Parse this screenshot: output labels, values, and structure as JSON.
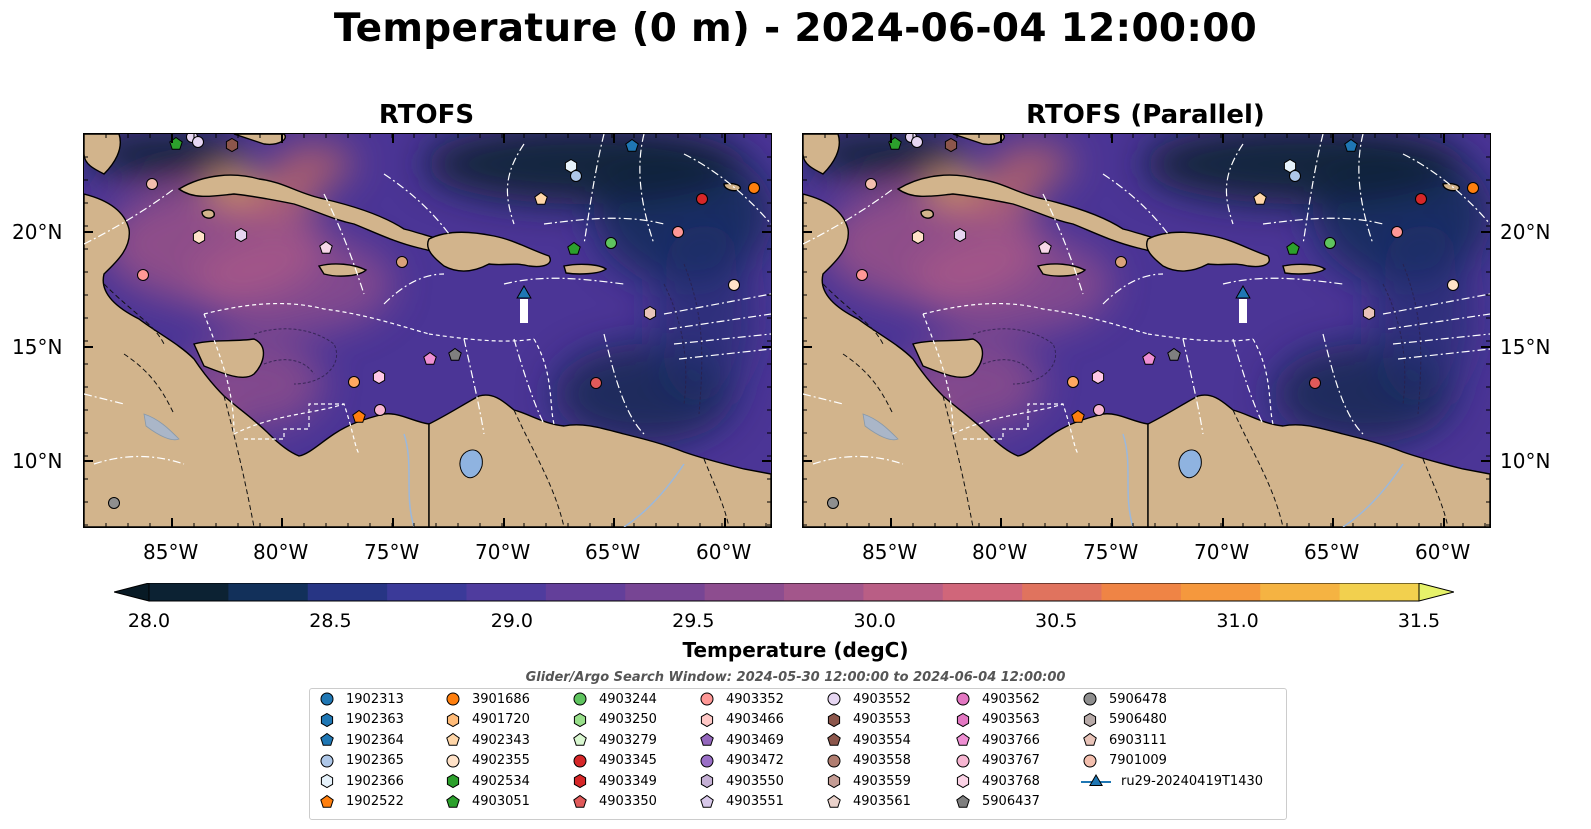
{
  "title": "Temperature (0 m) - 2024-06-04 12:00:00",
  "panels": [
    {
      "title": "RTOFS"
    },
    {
      "title": "RTOFS (Parallel)"
    }
  ],
  "axes": {
    "lat_labels": [
      "20°N",
      "15°N",
      "10°N"
    ],
    "lon_labels": [
      "85°W",
      "80°W",
      "75°W",
      "70°W",
      "65°W",
      "60°W"
    ]
  },
  "colorbar": {
    "title": "Temperature (degC)",
    "min": 28.0,
    "max": 31.5,
    "ticks": [
      "28.0",
      "28.5",
      "29.0",
      "29.5",
      "30.0",
      "30.5",
      "31.0",
      "31.5"
    ],
    "colors": [
      "#0c2233",
      "#12305a",
      "#273584",
      "#3b3a99",
      "#4f3c9e",
      "#633f9a",
      "#774594",
      "#8d4d8f",
      "#a3568b",
      "#b95e85",
      "#d0667a",
      "#e0735e",
      "#ef8445",
      "#f5983d",
      "#f5b342",
      "#f2d04e"
    ],
    "under_color": "#081a25",
    "over_color": "#e6f26a"
  },
  "search_window": "Glider/Argo Search Window: 2024-05-30 12:00:00 to 2024-06-04 12:00:00",
  "legend": [
    {
      "label": "1902313",
      "marker": "circle",
      "color": "#1f77b4"
    },
    {
      "label": "1902363",
      "marker": "hexagon",
      "color": "#1f77b4"
    },
    {
      "label": "1902364",
      "marker": "pentagon",
      "color": "#1f77b4"
    },
    {
      "label": "1902365",
      "marker": "circle",
      "color": "#aec7e8"
    },
    {
      "label": "1902366",
      "marker": "hexagon",
      "color": "#e6f2fb"
    },
    {
      "label": "1902522",
      "marker": "pentagon",
      "color": "#ff7f0e"
    },
    {
      "label": "3901686",
      "marker": "circle",
      "color": "#ff7f0e"
    },
    {
      "label": "4901720",
      "marker": "hexagon",
      "color": "#ffbb78"
    },
    {
      "label": "4902343",
      "marker": "pentagon",
      "color": "#ffd6a8"
    },
    {
      "label": "4902355",
      "marker": "circle",
      "color": "#ffe2c8"
    },
    {
      "label": "4902534",
      "marker": "hexagon",
      "color": "#2ca02c"
    },
    {
      "label": "4903051",
      "marker": "pentagon",
      "color": "#2ca02c"
    },
    {
      "label": "4903244",
      "marker": "circle",
      "color": "#5fc45f"
    },
    {
      "label": "4903250",
      "marker": "hexagon",
      "color": "#98df8a"
    },
    {
      "label": "4903279",
      "marker": "pentagon",
      "color": "#d9f7d0"
    },
    {
      "label": "4903345",
      "marker": "circle",
      "color": "#d62728"
    },
    {
      "label": "4903349",
      "marker": "hexagon",
      "color": "#d62728"
    },
    {
      "label": "4903350",
      "marker": "pentagon",
      "color": "#e05a5a"
    },
    {
      "label": "4903352",
      "marker": "circle",
      "color": "#ff9896"
    },
    {
      "label": "4903466",
      "marker": "hexagon",
      "color": "#ffc8c6"
    },
    {
      "label": "4903469",
      "marker": "pentagon",
      "color": "#9467bd"
    },
    {
      "label": "4903472",
      "marker": "circle",
      "color": "#9a6fc7"
    },
    {
      "label": "4903550",
      "marker": "hexagon",
      "color": "#c5b0d5"
    },
    {
      "label": "4903551",
      "marker": "pentagon",
      "color": "#d8c8ea"
    },
    {
      "label": "4903552",
      "marker": "circle",
      "color": "#e6d6f2"
    },
    {
      "label": "4903553",
      "marker": "hexagon",
      "color": "#8c564b"
    },
    {
      "label": "4903554",
      "marker": "pentagon",
      "color": "#8c564b"
    },
    {
      "label": "4903558",
      "marker": "circle",
      "color": "#b07d70"
    },
    {
      "label": "4903559",
      "marker": "hexagon",
      "color": "#c49c94"
    },
    {
      "label": "4903561",
      "marker": "pentagon",
      "color": "#ead2cb"
    },
    {
      "label": "4903562",
      "marker": "circle",
      "color": "#e377c2"
    },
    {
      "label": "4903563",
      "marker": "hexagon",
      "color": "#e377c2"
    },
    {
      "label": "4903766",
      "marker": "pentagon",
      "color": "#ef8fd3"
    },
    {
      "label": "4903767",
      "marker": "circle",
      "color": "#f7b6d2"
    },
    {
      "label": "4903768",
      "marker": "hexagon",
      "color": "#fbd3e6"
    },
    {
      "label": "5906437",
      "marker": "pentagon",
      "color": "#7f7f7f"
    },
    {
      "label": "5906478",
      "marker": "circle",
      "color": "#8f8f8f"
    },
    {
      "label": "5906480",
      "marker": "hexagon",
      "color": "#b7aaa8"
    },
    {
      "label": "6903111",
      "marker": "pentagon",
      "color": "#e8c3b8"
    },
    {
      "label": "7901009",
      "marker": "circle",
      "color": "#f3bfae"
    },
    {
      "label": "ru29-20240419T1430",
      "marker": "triangle-line",
      "color": "#1f77b4"
    }
  ]
}
